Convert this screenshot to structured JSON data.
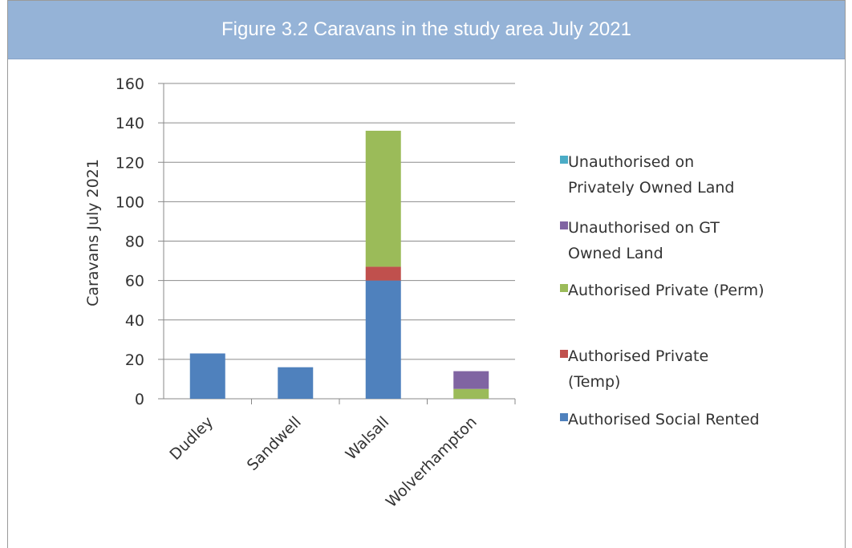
{
  "header": {
    "title": "Figure 3.2 Caravans in the study area July 2021"
  },
  "chart_data": {
    "type": "bar",
    "stacked": true,
    "categories": [
      "Dudley",
      "Sandwell",
      "Walsall",
      "Wolverhampton"
    ],
    "series": [
      {
        "name": "Authorised Social Rented",
        "color": "#4f81bd",
        "values": [
          23,
          16,
          60,
          0
        ]
      },
      {
        "name": "Authorised Private (Temp)",
        "color": "#c0504d",
        "values": [
          0,
          0,
          7,
          0
        ]
      },
      {
        "name": "Authorised Private (Perm)",
        "color": "#9bbb59",
        "values": [
          0,
          0,
          69,
          5
        ]
      },
      {
        "name": "Unauthorised on GT Owned Land",
        "color": "#8064a2",
        "values": [
          0,
          0,
          0,
          9
        ]
      },
      {
        "name": "Unauthorised on Privately Owned Land",
        "color": "#4bacc6",
        "values": [
          0,
          0,
          0,
          0
        ]
      }
    ],
    "legend": [
      {
        "lines": [
          "Unauthorised on",
          "Privately Owned Land"
        ],
        "color": "#4bacc6"
      },
      {
        "lines": [
          "Unauthorised on GT",
          "Owned Land"
        ],
        "color": "#8064a2"
      },
      {
        "lines": [
          "Authorised Private (Perm)"
        ],
        "color": "#9bbb59"
      },
      {
        "lines": [
          "Authorised Private",
          "(Temp)"
        ],
        "color": "#c0504d"
      },
      {
        "lines": [
          "Authorised Social Rented"
        ],
        "color": "#4f81bd"
      }
    ],
    "yticks": [
      "0",
      "20",
      "40",
      "60",
      "80",
      "100",
      "120",
      "140",
      "160"
    ],
    "ylim": [
      0,
      160
    ],
    "ylabel": "Caravans July 2021",
    "xlabel": "",
    "grid": true,
    "legend_position": "right"
  }
}
